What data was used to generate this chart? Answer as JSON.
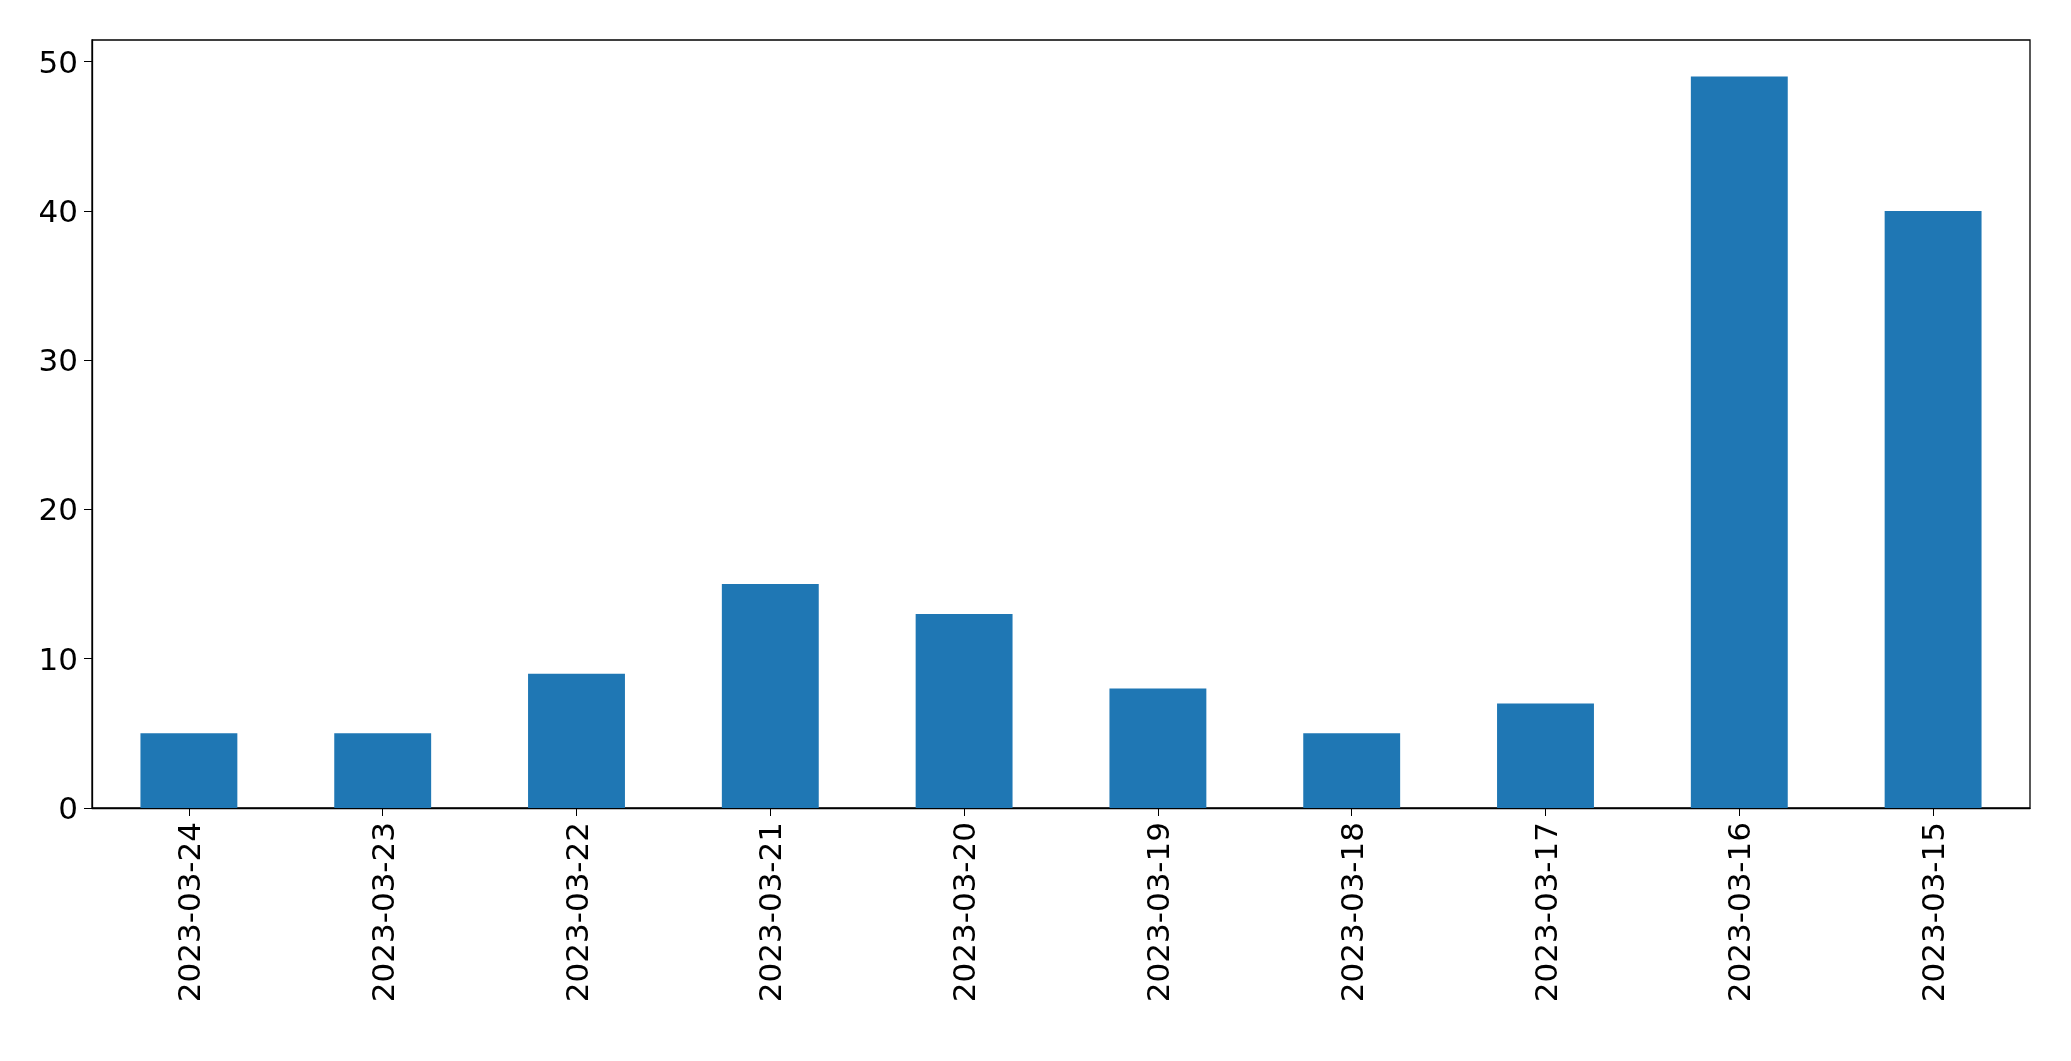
{
  "chart_data": {
    "type": "bar",
    "categories": [
      "2023-03-24",
      "2023-03-23",
      "2023-03-22",
      "2023-03-21",
      "2023-03-20",
      "2023-03-19",
      "2023-03-18",
      "2023-03-17",
      "2023-03-16",
      "2023-03-15"
    ],
    "values": [
      5,
      5,
      9,
      15,
      13,
      8,
      5,
      7,
      49,
      40
    ],
    "color": "#1f77b4",
    "ylim": [
      0,
      51.45
    ],
    "yticks": [
      0,
      10,
      20,
      30,
      40,
      50
    ]
  }
}
